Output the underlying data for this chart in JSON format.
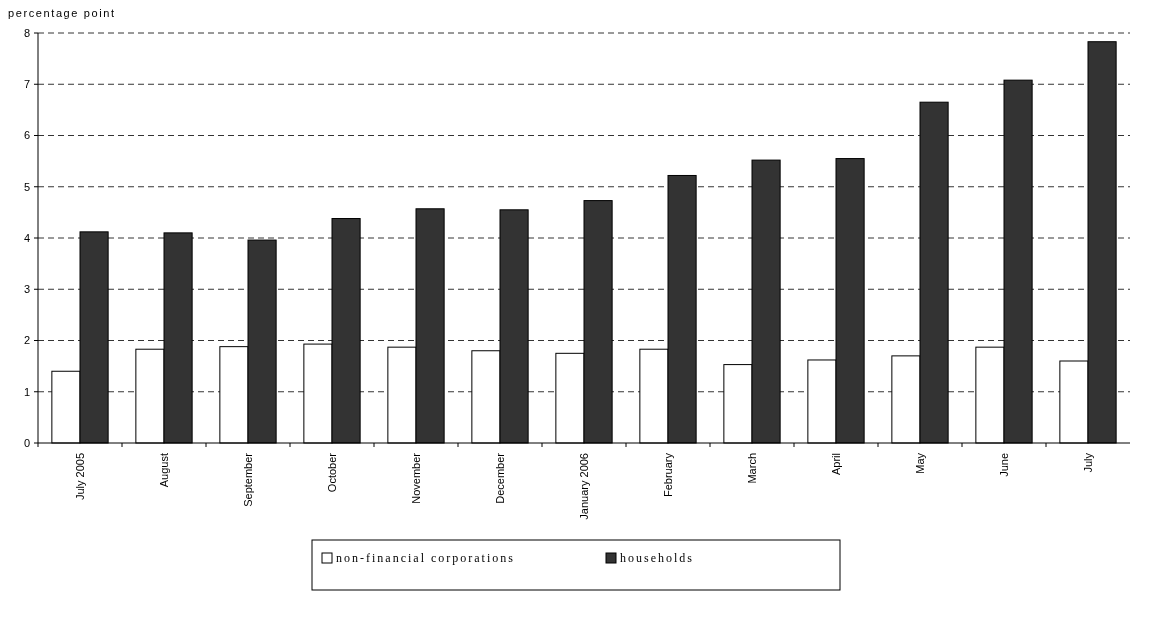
{
  "chart_data": {
    "type": "bar",
    "ylabel": "percentage point",
    "categories": [
      "July 2005",
      "August",
      "September",
      "October",
      "November",
      "December",
      "January 2006",
      "February",
      "March",
      "April",
      "May",
      "June",
      "July"
    ],
    "series": [
      {
        "name": "non-financial corporations",
        "color": "#ffffff",
        "values": [
          1.4,
          1.83,
          1.88,
          1.93,
          1.87,
          1.8,
          1.75,
          1.83,
          1.53,
          1.62,
          1.7,
          1.87,
          1.6
        ]
      },
      {
        "name": "households",
        "color": "#333333",
        "values": [
          4.12,
          4.1,
          3.96,
          4.38,
          4.57,
          4.55,
          4.73,
          5.22,
          5.52,
          5.55,
          6.65,
          7.08,
          7.83
        ]
      }
    ],
    "ylim": [
      0,
      8
    ],
    "yticks": [
      0,
      1,
      2,
      3,
      4,
      5,
      6,
      7,
      8
    ],
    "grid": "y",
    "legend": "bottom"
  }
}
